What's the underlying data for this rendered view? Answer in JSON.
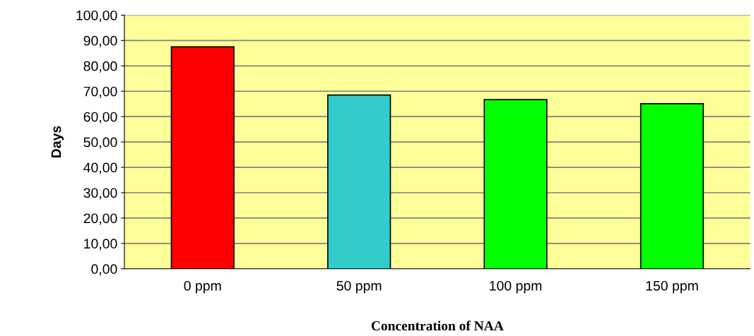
{
  "chart_data": {
    "type": "bar",
    "xlabel": "Concentration of NAA",
    "ylabel": "Days",
    "categories": [
      "0 ppm",
      "50 ppm",
      "100 ppm",
      "150 ppm"
    ],
    "values": [
      87.5,
      68.5,
      66.7,
      65.1
    ],
    "colors": [
      "#ff0000",
      "#33cccc",
      "#00ff00",
      "#00ff00"
    ],
    "ylim": [
      0,
      100
    ],
    "yticks": [
      {
        "value": 0,
        "label": "0,00"
      },
      {
        "value": 10,
        "label": "10,00"
      },
      {
        "value": 20,
        "label": "20,00"
      },
      {
        "value": 30,
        "label": "30,00"
      },
      {
        "value": 40,
        "label": "40,00"
      },
      {
        "value": 50,
        "label": "50,00"
      },
      {
        "value": 60,
        "label": "60,00"
      },
      {
        "value": 70,
        "label": "70,00"
      },
      {
        "value": 80,
        "label": "80,00"
      },
      {
        "value": 90,
        "label": "90,00"
      },
      {
        "value": 100,
        "label": "100,00"
      }
    ],
    "grid": "y"
  }
}
